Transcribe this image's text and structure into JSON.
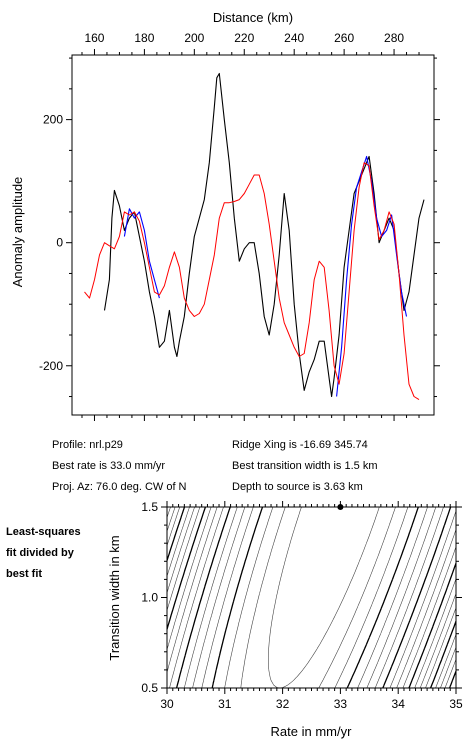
{
  "chart_data": [
    {
      "type": "line",
      "xlabel": "Distance (km)",
      "ylabel": "Anomaly amplitude",
      "xlim": [
        151,
        296
      ],
      "ylim": [
        -280,
        305
      ],
      "xticks": [
        160,
        180,
        200,
        220,
        240,
        260,
        280
      ],
      "yticks": [
        -200,
        0,
        200
      ],
      "series": [
        {
          "color": "#000000",
          "x": [
            164,
            166,
            167,
            168,
            170,
            172,
            174,
            176,
            178,
            180,
            182,
            184,
            186,
            188,
            190,
            192,
            193,
            194,
            196,
            198,
            200,
            202,
            204,
            206,
            208,
            209,
            210,
            212,
            214,
            216,
            218,
            220,
            222,
            224,
            226,
            228,
            230,
            232,
            234,
            236,
            238,
            240,
            242,
            244,
            246,
            248,
            250,
            252,
            254,
            255,
            256,
            258,
            260,
            262,
            264,
            266,
            268,
            270,
            272,
            274,
            276,
            278,
            280,
            282,
            284,
            286,
            288,
            290,
            292
          ],
          "y": [
            -110,
            -60,
            40,
            85,
            60,
            20,
            40,
            50,
            10,
            -30,
            -80,
            -120,
            -170,
            -160,
            -110,
            -170,
            -185,
            -160,
            -120,
            -50,
            10,
            40,
            70,
            130,
            220,
            268,
            275,
            200,
            130,
            40,
            -30,
            -10,
            0,
            0,
            -50,
            -120,
            -150,
            -100,
            -20,
            80,
            20,
            -100,
            -180,
            -240,
            -210,
            -190,
            -160,
            -160,
            -220,
            -250,
            -220,
            -150,
            -40,
            20,
            80,
            100,
            120,
            140,
            80,
            0,
            20,
            40,
            20,
            -50,
            -110,
            -80,
            -20,
            40,
            70
          ]
        },
        {
          "color": "#0000ff",
          "x": [
            172,
            174,
            176,
            178,
            180,
            182,
            184,
            186,
            257,
            259,
            261,
            263,
            265,
            267,
            269,
            271,
            273,
            275,
            277,
            279,
            281,
            283,
            285
          ],
          "y": [
            10,
            55,
            40,
            50,
            20,
            -30,
            -60,
            -90,
            -250,
            -170,
            -60,
            30,
            90,
            115,
            140,
            100,
            40,
            10,
            20,
            45,
            -20,
            -80,
            -120
          ]
        },
        {
          "color": "#ff0000",
          "x": [
            156,
            158,
            160,
            162,
            164,
            166,
            168,
            170,
            172,
            174,
            176,
            178,
            180,
            182,
            184,
            186,
            188,
            190,
            192,
            194,
            196,
            198,
            200,
            202,
            204,
            206,
            208,
            210,
            212,
            214,
            216,
            218,
            220,
            222,
            224,
            226,
            228,
            230,
            232,
            234,
            236,
            238,
            240,
            242,
            244,
            246,
            248,
            250,
            252,
            254,
            256,
            258,
            260,
            262,
            264,
            266,
            268,
            270,
            272,
            274,
            276,
            278,
            280,
            282,
            284,
            286,
            288,
            290
          ],
          "y": [
            -80,
            -90,
            -60,
            -20,
            0,
            -5,
            -10,
            10,
            50,
            45,
            50,
            35,
            0,
            -40,
            -80,
            -85,
            -70,
            -40,
            -15,
            -40,
            -90,
            -110,
            -120,
            -115,
            -100,
            -60,
            -20,
            40,
            65,
            65,
            67,
            70,
            80,
            95,
            110,
            110,
            80,
            30,
            -30,
            -90,
            -130,
            -150,
            -170,
            -185,
            -180,
            -130,
            -60,
            -30,
            -40,
            -110,
            -200,
            -230,
            -180,
            -80,
            20,
            90,
            130,
            125,
            60,
            5,
            20,
            50,
            30,
            -50,
            -150,
            -230,
            -250,
            -255
          ]
        }
      ]
    },
    {
      "type": "contour",
      "xlabel": "Rate in mm/yr",
      "ylabel": "Transition width in km",
      "xlim": [
        30,
        35
      ],
      "ylim": [
        0.5,
        1.5
      ],
      "xticks": [
        "30",
        "31",
        "32",
        "33",
        "34",
        "35"
      ],
      "yticks": [
        "0.5",
        "1.0",
        "1.5"
      ],
      "best_fit": {
        "rate": 33.0,
        "width": 1.5
      }
    }
  ],
  "info": {
    "profile": "Profile: nrl.p29",
    "rate": "Best rate is 33.0 mm/yr",
    "proj": "Proj. Az: 76.0 deg. CW of N",
    "ridge": "Ridge Xing is -16.69 345.74",
    "width": "Best transition width is 1.5 km",
    "depth": "Depth to source is   3.63 km"
  },
  "contour_note": [
    "Least-squares",
    "fit divided by",
    "best fit"
  ]
}
